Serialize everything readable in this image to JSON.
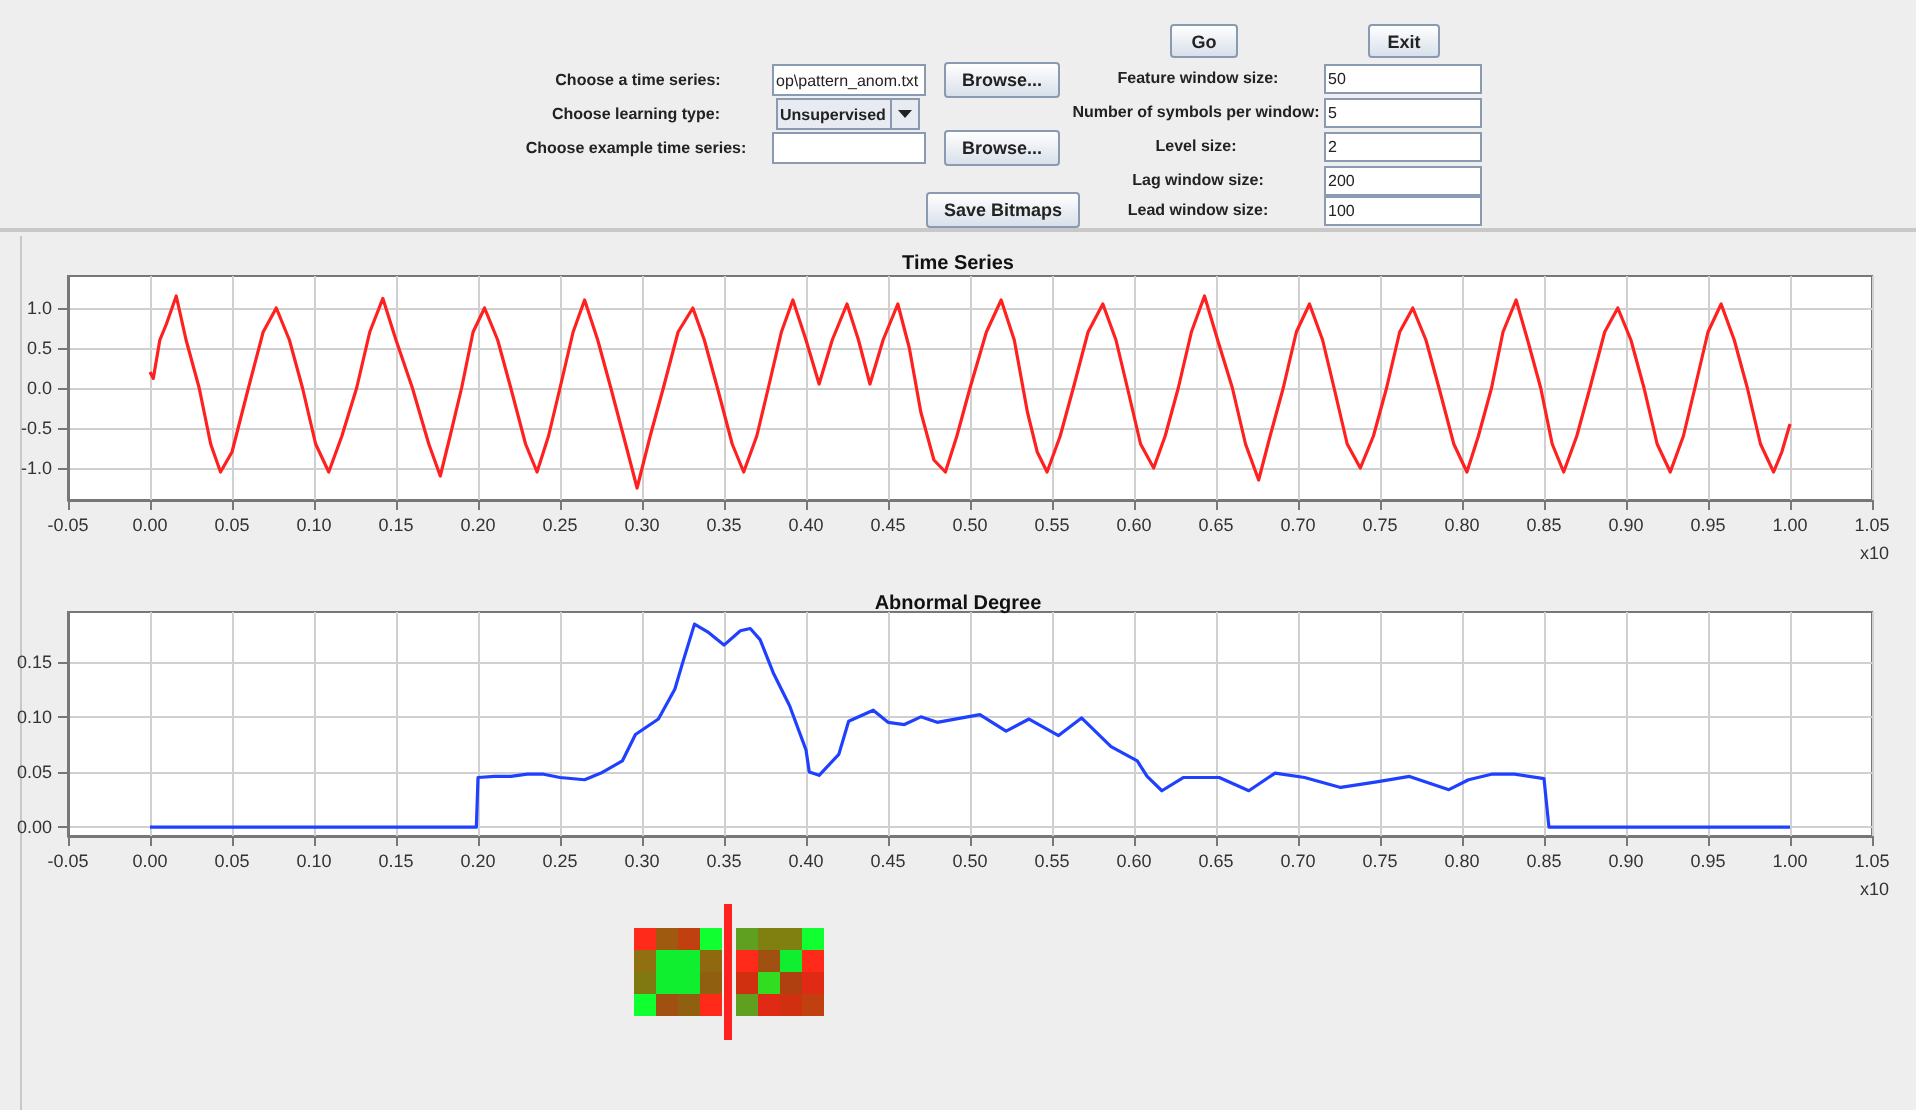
{
  "chart_data": [
    {
      "type": "other",
      "annotations": [
        "Go",
        "Exit",
        "Choose a time series:",
        "op\\pattern_anom.txt",
        "Browse...",
        "Choose learning type:",
        "Unsupervised",
        "Choose example time series:",
        "Browse...",
        "Save Bitmaps",
        "Feature window size:",
        "50",
        "Number of symbols per window:",
        "5",
        "Level size:",
        "2",
        "Lag window size:",
        "200",
        "Lead window size:",
        "100"
      ]
    },
    {
      "type": "line",
      "title": "Time Series",
      "xlabel": "x10",
      "grid": true,
      "marker": "none",
      "line_style": "solid",
      "xlim": [
        -0.05,
        1.05
      ],
      "ylim": [
        -1.4,
        1.4
      ],
      "xticks": [
        {
          "value": -0.05,
          "label": "-0.05"
        },
        {
          "value": 0,
          "label": "0.00"
        },
        {
          "value": 0.05,
          "label": "0.05"
        },
        {
          "value": 0.1,
          "label": "0.10"
        },
        {
          "value": 0.15,
          "label": "0.15"
        },
        {
          "value": 0.2,
          "label": "0.20"
        },
        {
          "value": 0.25,
          "label": "0.25"
        },
        {
          "value": 0.3,
          "label": "0.30"
        },
        {
          "value": 0.35,
          "label": "0.35"
        },
        {
          "value": 0.4,
          "label": "0.40"
        },
        {
          "value": 0.45,
          "label": "0.45"
        },
        {
          "value": 0.5,
          "label": "0.50"
        },
        {
          "value": 0.55,
          "label": "0.55"
        },
        {
          "value": 0.6,
          "label": "0.60"
        },
        {
          "value": 0.65,
          "label": "0.65"
        },
        {
          "value": 0.7,
          "label": "0.70"
        },
        {
          "value": 0.75,
          "label": "0.75"
        },
        {
          "value": 0.8,
          "label": "0.80"
        },
        {
          "value": 0.85,
          "label": "0.85"
        },
        {
          "value": 0.9,
          "label": "0.90"
        },
        {
          "value": 0.95,
          "label": "0.95"
        },
        {
          "value": 1,
          "label": "1.00"
        },
        {
          "value": 1.05,
          "label": "1.05"
        }
      ],
      "yticks": [
        {
          "value": -1,
          "label": "-1.0"
        },
        {
          "value": -0.5,
          "label": "-0.5"
        },
        {
          "value": 0,
          "label": "0.0"
        },
        {
          "value": 0.5,
          "label": "0.5"
        },
        {
          "value": 1,
          "label": "1.0"
        }
      ],
      "series": [
        {
          "color": "#ff2020",
          "x": [
            0,
            0.002,
            0.006,
            0.01,
            0.016,
            0.022,
            0.03,
            0.037,
            0.043,
            0.05,
            0.06,
            0.069,
            0.077,
            0.085,
            0.093,
            0.101,
            0.109,
            0.117,
            0.126,
            0.134,
            0.142,
            0.15,
            0.16,
            0.17,
            0.177,
            0.183,
            0.19,
            0.197,
            0.204,
            0.212,
            0.22,
            0.229,
            0.236,
            0.243,
            0.25,
            0.258,
            0.265,
            0.273,
            0.281,
            0.29,
            0.297,
            0.305,
            0.313,
            0.322,
            0.331,
            0.338,
            0.346,
            0.355,
            0.362,
            0.37,
            0.377,
            0.385,
            0.392,
            0.4,
            0.408,
            0.416,
            0.425,
            0.432,
            0.439,
            0.447,
            0.456,
            0.463,
            0.47,
            0.478,
            0.485,
            0.492,
            0.5,
            0.51,
            0.519,
            0.527,
            0.535,
            0.541,
            0.547,
            0.555,
            0.563,
            0.572,
            0.581,
            0.589,
            0.596,
            0.604,
            0.612,
            0.619,
            0.627,
            0.635,
            0.643,
            0.651,
            0.66,
            0.668,
            0.676,
            0.683,
            0.691,
            0.699,
            0.707,
            0.715,
            0.722,
            0.73,
            0.738,
            0.746,
            0.754,
            0.762,
            0.77,
            0.778,
            0.786,
            0.795,
            0.803,
            0.81,
            0.818,
            0.825,
            0.833,
            0.84,
            0.848,
            0.855,
            0.862,
            0.87,
            0.878,
            0.887,
            0.895,
            0.903,
            0.911,
            0.919,
            0.927,
            0.935,
            0.942,
            0.95,
            0.958,
            0.966,
            0.974,
            0.982,
            0.99,
            0.995,
            1
          ],
          "values": [
            0.2,
            0.12,
            0.6,
            0.8,
            1.15,
            0.6,
            0,
            -0.7,
            -1.05,
            -0.8,
            0,
            0.7,
            1,
            0.6,
            0,
            -0.7,
            -1.05,
            -0.6,
            0,
            0.7,
            1.12,
            0.6,
            0,
            -0.7,
            -1.1,
            -0.6,
            0,
            0.7,
            1,
            0.6,
            0,
            -0.7,
            -1.05,
            -0.6,
            0,
            0.7,
            1.1,
            0.6,
            0,
            -0.7,
            -1.25,
            -0.6,
            0,
            0.7,
            1,
            0.6,
            0,
            -0.7,
            -1.05,
            -0.6,
            0,
            0.7,
            1.1,
            0.6,
            0.05,
            0.6,
            1.05,
            0.6,
            0.05,
            0.6,
            1.05,
            0.5,
            -0.3,
            -0.9,
            -1.05,
            -0.6,
            0,
            0.7,
            1.1,
            0.6,
            -0.3,
            -0.8,
            -1.05,
            -0.6,
            0,
            0.7,
            1.05,
            0.6,
            0,
            -0.7,
            -1,
            -0.6,
            0,
            0.7,
            1.15,
            0.6,
            0,
            -0.7,
            -1.15,
            -0.6,
            0,
            0.7,
            1.05,
            0.6,
            0,
            -0.7,
            -1,
            -0.6,
            0,
            0.7,
            1,
            0.6,
            0,
            -0.7,
            -1.05,
            -0.6,
            0,
            0.7,
            1.1,
            0.6,
            0,
            -0.7,
            -1.05,
            -0.6,
            0,
            0.7,
            1,
            0.6,
            0,
            -0.7,
            -1.05,
            -0.6,
            0,
            0.7,
            1.05,
            0.6,
            0,
            -0.7,
            -1.05,
            -0.8,
            -0.45
          ]
        }
      ]
    },
    {
      "type": "line",
      "title": "Abnormal Degree",
      "xlabel": "x10",
      "grid": true,
      "marker": "none",
      "line_style": "solid",
      "xlim": [
        -0.05,
        1.05
      ],
      "ylim": [
        -0.008,
        0.195
      ],
      "xticks": [
        {
          "value": -0.05,
          "label": "-0.05"
        },
        {
          "value": 0,
          "label": "0.00"
        },
        {
          "value": 0.05,
          "label": "0.05"
        },
        {
          "value": 0.1,
          "label": "0.10"
        },
        {
          "value": 0.15,
          "label": "0.15"
        },
        {
          "value": 0.2,
          "label": "0.20"
        },
        {
          "value": 0.25,
          "label": "0.25"
        },
        {
          "value": 0.3,
          "label": "0.30"
        },
        {
          "value": 0.35,
          "label": "0.35"
        },
        {
          "value": 0.4,
          "label": "0.40"
        },
        {
          "value": 0.45,
          "label": "0.45"
        },
        {
          "value": 0.5,
          "label": "0.50"
        },
        {
          "value": 0.55,
          "label": "0.55"
        },
        {
          "value": 0.6,
          "label": "0.60"
        },
        {
          "value": 0.65,
          "label": "0.65"
        },
        {
          "value": 0.7,
          "label": "0.70"
        },
        {
          "value": 0.75,
          "label": "0.75"
        },
        {
          "value": 0.8,
          "label": "0.80"
        },
        {
          "value": 0.85,
          "label": "0.85"
        },
        {
          "value": 0.9,
          "label": "0.90"
        },
        {
          "value": 0.95,
          "label": "0.95"
        },
        {
          "value": 1,
          "label": "1.00"
        },
        {
          "value": 1.05,
          "label": "1.05"
        }
      ],
      "yticks": [
        {
          "value": 0,
          "label": "0.00"
        },
        {
          "value": 0.05,
          "label": "0.05"
        },
        {
          "value": 0.1,
          "label": "0.10"
        },
        {
          "value": 0.15,
          "label": "0.15"
        }
      ],
      "series": [
        {
          "color": "#2040ff",
          "x": [
            0,
            0.199,
            0.2,
            0.21,
            0.22,
            0.23,
            0.24,
            0.25,
            0.265,
            0.275,
            0.288,
            0.296,
            0.31,
            0.32,
            0.325,
            0.332,
            0.34,
            0.35,
            0.36,
            0.366,
            0.372,
            0.38,
            0.39,
            0.4,
            0.402,
            0.408,
            0.42,
            0.426,
            0.441,
            0.45,
            0.46,
            0.47,
            0.48,
            0.506,
            0.522,
            0.536,
            0.554,
            0.568,
            0.586,
            0.602,
            0.608,
            0.617,
            0.63,
            0.652,
            0.67,
            0.686,
            0.704,
            0.726,
            0.748,
            0.768,
            0.792,
            0.804,
            0.818,
            0.832,
            0.85,
            0.853,
            1
          ],
          "values": [
            0,
            0,
            0.045,
            0.046,
            0.046,
            0.048,
            0.048,
            0.045,
            0.043,
            0.049,
            0.06,
            0.084,
            0.098,
            0.125,
            0.15,
            0.184,
            0.177,
            0.165,
            0.178,
            0.18,
            0.17,
            0.14,
            0.11,
            0.07,
            0.05,
            0.047,
            0.066,
            0.096,
            0.106,
            0.095,
            0.093,
            0.1,
            0.095,
            0.102,
            0.087,
            0.098,
            0.083,
            0.099,
            0.073,
            0.06,
            0.046,
            0.033,
            0.045,
            0.045,
            0.033,
            0.049,
            0.045,
            0.036,
            0.041,
            0.046,
            0.034,
            0.043,
            0.048,
            0.048,
            0.044,
            0,
            0
          ]
        }
      ]
    }
  ]
}
